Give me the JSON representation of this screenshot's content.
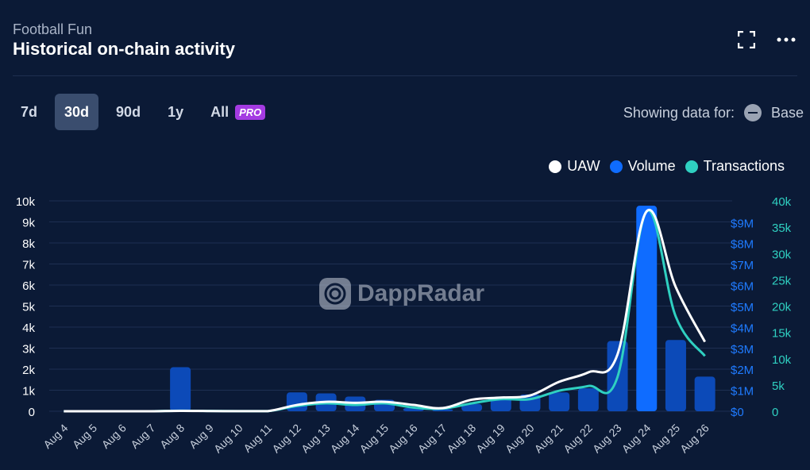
{
  "header": {
    "subtitle": "Football Fun",
    "title": "Historical on-chain activity"
  },
  "icons": {
    "expand": "expand-icon",
    "more": "more-icon"
  },
  "tabs": [
    {
      "label": "7d",
      "active": false
    },
    {
      "label": "30d",
      "active": true
    },
    {
      "label": "90d",
      "active": false
    },
    {
      "label": "1y",
      "active": false
    },
    {
      "label": "All",
      "active": false
    }
  ],
  "pro_label": "PRO",
  "showing": {
    "label": "Showing data for:",
    "chain": "Base"
  },
  "legend": [
    {
      "name": "UAW",
      "color": "#ffffff"
    },
    {
      "name": "Volume",
      "color": "#0f6cff"
    },
    {
      "name": "Transactions",
      "color": "#2fd0c1"
    }
  ],
  "watermark": "DappRadar",
  "chart_data": {
    "type": "bar+line",
    "categories": [
      "Aug 4",
      "Aug 5",
      "Aug 6",
      "Aug 7",
      "Aug 8",
      "Aug 9",
      "Aug 10",
      "Aug 11",
      "Aug 12",
      "Aug 13",
      "Aug 14",
      "Aug 15",
      "Aug 16",
      "Aug 17",
      "Aug 18",
      "Aug 19",
      "Aug 20",
      "Aug 21",
      "Aug 22",
      "Aug 23",
      "Aug 24",
      "Aug 25",
      "Aug 26"
    ],
    "axes": {
      "uaw": {
        "ticks": [
          "0",
          "1k",
          "2k",
          "3k",
          "4k",
          "5k",
          "6k",
          "7k",
          "8k",
          "9k",
          "10k"
        ],
        "range": [
          0,
          10000
        ]
      },
      "volume": {
        "ticks": [
          "$0",
          "$1M",
          "$2M",
          "$3M",
          "$4M",
          "$5M",
          "$6M",
          "$7M",
          "$8M",
          "$9M"
        ],
        "range": [
          0,
          9000000
        ]
      },
      "transactions": {
        "ticks": [
          "0",
          "5k",
          "10k",
          "15k",
          "20k",
          "25k",
          "30k",
          "35k",
          "40k"
        ],
        "range": [
          0,
          40000
        ]
      }
    },
    "series": [
      {
        "name": "Volume",
        "type": "bar",
        "color": "#0f6cff",
        "values": [
          0,
          0,
          0,
          0,
          2100000,
          0,
          0,
          0,
          900000,
          850000,
          700000,
          550000,
          150000,
          100000,
          350000,
          650000,
          800000,
          900000,
          1100000,
          3350000,
          9800000,
          3400000,
          1650000
        ]
      },
      {
        "name": "UAW",
        "type": "line",
        "color": "#ffffff",
        "values": [
          0,
          0,
          0,
          0,
          20,
          10,
          5,
          5,
          300,
          450,
          400,
          450,
          300,
          150,
          550,
          650,
          750,
          1400,
          1850,
          2700,
          9500,
          5900,
          3300
        ]
      },
      {
        "name": "Transactions",
        "type": "line",
        "color": "#2fd0c1",
        "values": [
          0,
          0,
          0,
          0,
          100,
          50,
          20,
          20,
          1000,
          1500,
          1200,
          1500,
          700,
          500,
          1500,
          2300,
          2300,
          3900,
          4800,
          6500,
          38000,
          18000,
          10500
        ]
      }
    ]
  }
}
